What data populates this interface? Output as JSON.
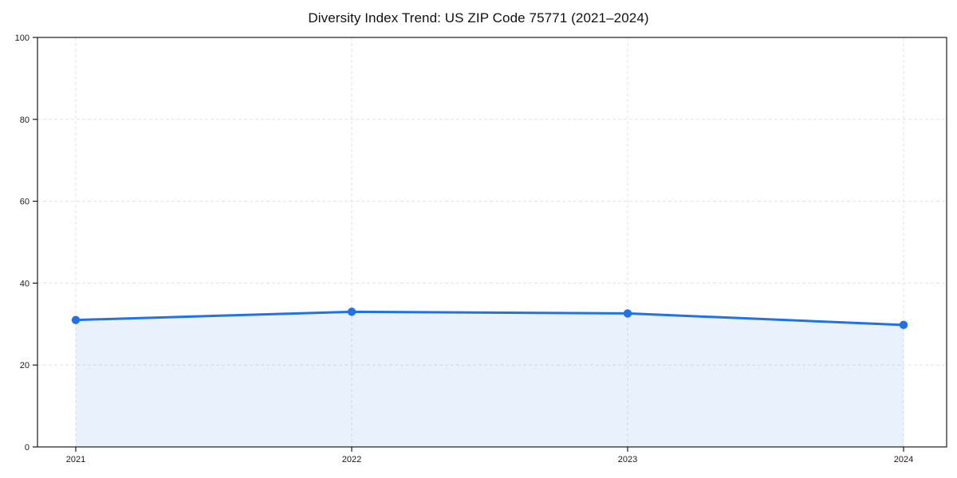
{
  "chart_data": {
    "type": "area",
    "title": "Diversity Index Trend: US ZIP Code 75771 (2021–2024)",
    "x": [
      2021,
      2022,
      2023,
      2024
    ],
    "xticks": [
      "2021",
      "2022",
      "2023",
      "2024"
    ],
    "values": [
      31.0,
      33.0,
      32.6,
      29.8
    ],
    "ylim": [
      0,
      100
    ],
    "yticks": [
      0,
      20,
      40,
      60,
      80,
      100
    ],
    "grid": "dashed-both-axes",
    "legend": "none",
    "marker": "circle",
    "colors": {
      "line": "#2272e4",
      "fill": "#2272e4",
      "fill_opacity": 0.1,
      "grid": "#e3e3e3",
      "axis": "#1a1a1a",
      "tick_text": "#1a1a1a",
      "background": "#ffffff"
    }
  }
}
